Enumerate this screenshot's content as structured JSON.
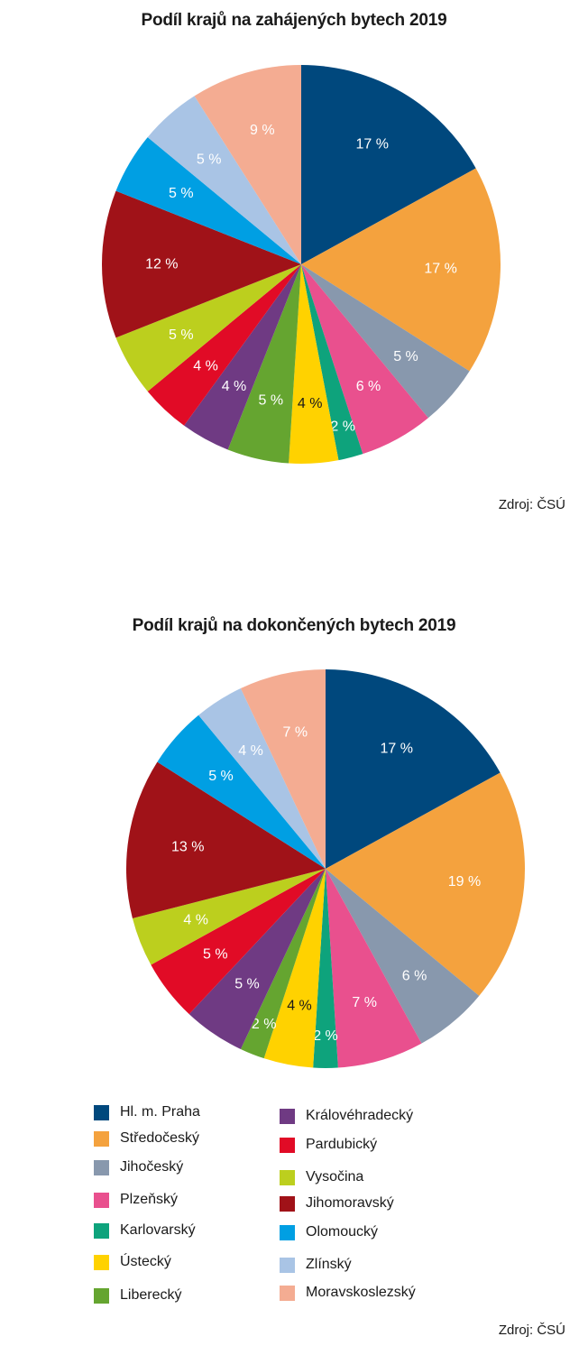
{
  "colors": [
    "#00487d",
    "#f4a23e",
    "#8898ad",
    "#e9508e",
    "#0ea37c",
    "#ffd200",
    "#65a530",
    "#6f3a83",
    "#e10b26",
    "#bccf1e",
    "#a01218",
    "#009fe3",
    "#a9c4e5",
    "#f4ac92"
  ],
  "chart_data": [
    {
      "type": "pie",
      "title": "Podíl krajů na zahájených bytech 2019",
      "categories": [
        "Hl. m. Praha",
        "Středočeský",
        "Jihočeský",
        "Plzeňský",
        "Karlovarský",
        "Ústecký",
        "Liberecký",
        "Královéhradecký",
        "Pardubický",
        "Vysočina",
        "Jihomoravský",
        "Olomoucký",
        "Zlínský",
        "Moravskoslezský"
      ],
      "values": [
        17,
        17,
        5,
        6,
        2,
        4,
        5,
        4,
        4,
        5,
        12,
        5,
        5,
        9
      ],
      "labels": [
        "17 %",
        "17 %",
        "5 %",
        "6 %",
        "2 %",
        "4 %",
        "5 %",
        "4 %",
        "4 %",
        "5 %",
        "12 %",
        "5 %",
        "5 %",
        "9 %"
      ],
      "source": "Zdroj: ČSÚ"
    },
    {
      "type": "pie",
      "title": "Podíl krajů na dokončených bytech 2019",
      "categories": [
        "Hl. m. Praha",
        "Středočeský",
        "Jihočeský",
        "Plzeňský",
        "Karlovarský",
        "Ústecký",
        "Liberecký",
        "Královéhradecký",
        "Pardubický",
        "Vysočina",
        "Jihomoravský",
        "Olomoucký",
        "Zlínský",
        "Moravskoslezský"
      ],
      "values": [
        17,
        19,
        6,
        7,
        2,
        4,
        2,
        5,
        5,
        4,
        13,
        5,
        4,
        7
      ],
      "labels": [
        "17 %",
        "19 %",
        "6 %",
        "7 %",
        "2 %",
        "4 %",
        "2 %",
        "5 %",
        "5 %",
        "4 %",
        "13 %",
        "5 %",
        "4 %",
        "7 %"
      ],
      "source": "Zdroj: ČSÚ"
    }
  ],
  "legend": [
    "Hl. m. Praha",
    "Středočeský",
    "Jihočeský",
    "Plzeňský",
    "Karlovarský",
    "Ústecký",
    "Liberecký",
    "Královéhradecký",
    "Pardubický",
    "Vysočina",
    "Jihomoravský",
    "Olomoucký",
    "Zlínský",
    "Moravskoslezský"
  ]
}
